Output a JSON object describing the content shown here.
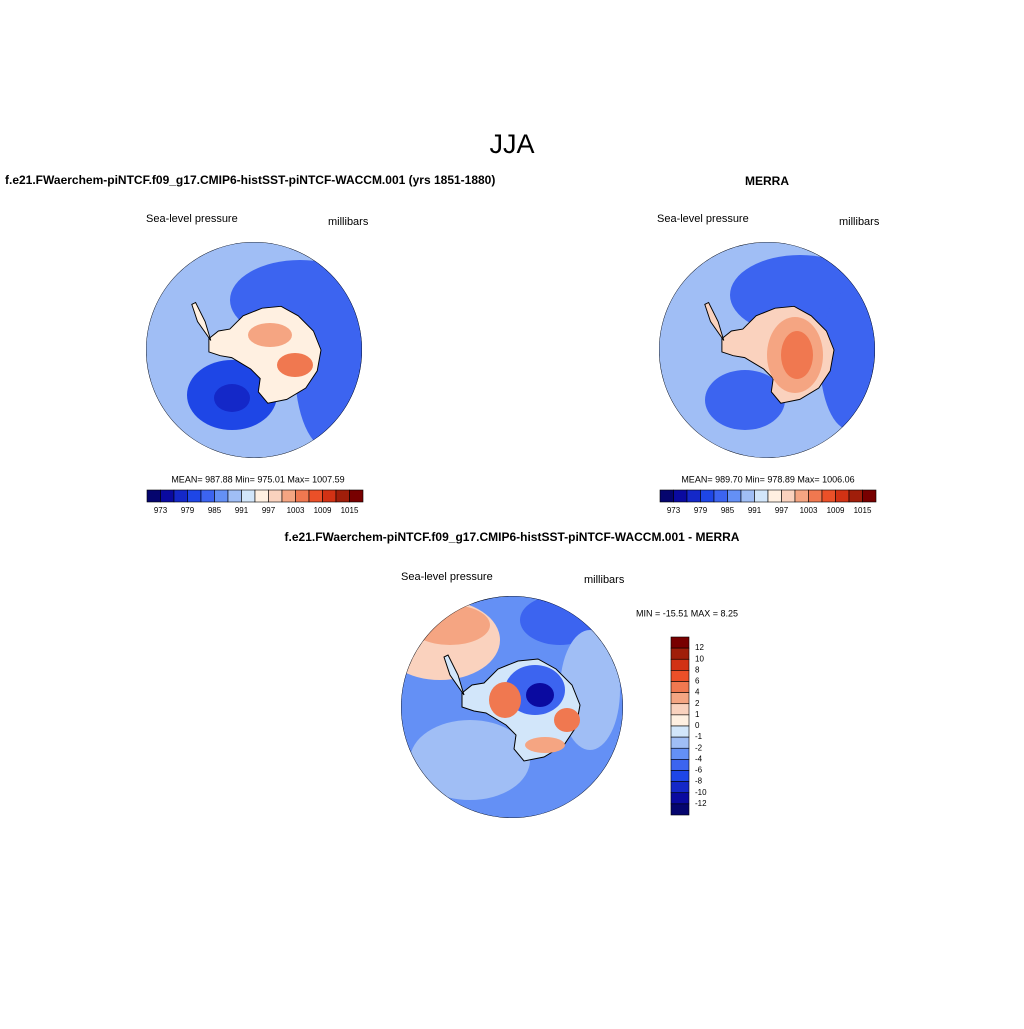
{
  "title": "JJA",
  "panels": [
    {
      "title": "f.e21.FWaerchem-piNTCF.f09_g17.CMIP6-histSST-piNTCF-WACCM.001 (yrs 1851-1880)",
      "left_label": "Sea-level pressure",
      "right_label": "millibars",
      "stats": "MEAN= 987.88  Min= 975.01  Max= 1007.59",
      "colorbar": {
        "labels": [
          973,
          979,
          985,
          991,
          997,
          1003,
          1009,
          1015
        ],
        "colors": [
          "#05056e",
          "#0a0aa0",
          "#1428c8",
          "#1e46e6",
          "#3c64f0",
          "#6490f5",
          "#a0bef5",
          "#d2e6fa",
          "#fff0e1",
          "#fad2be",
          "#f5a582",
          "#f07850",
          "#eb5028",
          "#d23214",
          "#a01e0a",
          "#780000"
        ]
      }
    },
    {
      "title": "MERRA",
      "left_label": "Sea-level pressure",
      "right_label": "millibars",
      "stats": "MEAN= 989.70  Min= 978.89  Max= 1006.06",
      "colorbar": {
        "labels": [
          973,
          979,
          985,
          991,
          997,
          1003,
          1009,
          1015
        ],
        "colors": [
          "#05056e",
          "#0a0aa0",
          "#1428c8",
          "#1e46e6",
          "#3c64f0",
          "#6490f5",
          "#a0bef5",
          "#d2e6fa",
          "#fff0e1",
          "#fad2be",
          "#f5a582",
          "#f07850",
          "#eb5028",
          "#d23214",
          "#a01e0a",
          "#780000"
        ]
      }
    },
    {
      "title": "f.e21.FWaerchem-piNTCF.f09_g17.CMIP6-histSST-piNTCF-WACCM.001 - MERRA",
      "left_label": "Sea-level pressure",
      "right_label": "millibars",
      "stats": "MIN = -15.51 MAX =   8.25",
      "colorbar": {
        "labels": [
          12,
          10,
          8,
          6,
          4,
          2,
          1,
          0,
          -1,
          -2,
          -4,
          -6,
          -8,
          -10,
          -12
        ],
        "colors": [
          "#780000",
          "#a01e0a",
          "#d23214",
          "#eb5028",
          "#f07850",
          "#f5a582",
          "#fad2be",
          "#fff0e1",
          "#d2e6fa",
          "#a0bef5",
          "#6490f5",
          "#3c64f0",
          "#1e46e6",
          "#1428c8",
          "#0a0aa0",
          "#05056e"
        ]
      }
    }
  ]
}
